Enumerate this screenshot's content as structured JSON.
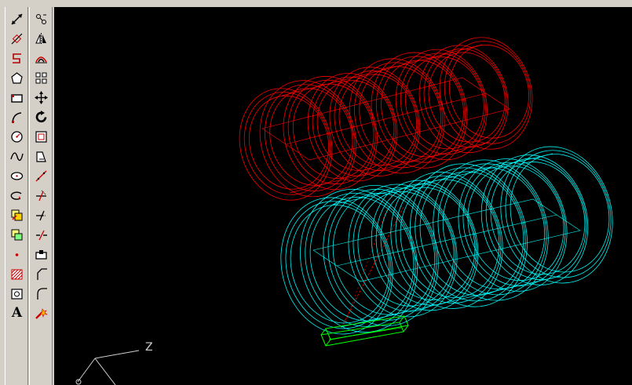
{
  "toolbars": {
    "draw": {
      "buttons": [
        {
          "icon": "line-icon"
        },
        {
          "icon": "construction-line-icon"
        },
        {
          "icon": "polyline-icon"
        },
        {
          "icon": "polygon-icon"
        },
        {
          "icon": "rectangle-icon"
        },
        {
          "icon": "arc-icon"
        },
        {
          "icon": "circle-icon"
        },
        {
          "icon": "spline-icon"
        },
        {
          "icon": "ellipse-icon"
        },
        {
          "icon": "ellipse-arc-icon"
        },
        {
          "icon": "insert-block-icon"
        },
        {
          "icon": "make-block-icon"
        },
        {
          "icon": "point-icon"
        },
        {
          "icon": "hatch-icon"
        },
        {
          "icon": "region-icon"
        },
        {
          "icon": "multiline-text-icon",
          "label": "A"
        }
      ]
    },
    "modify": {
      "buttons": [
        {
          "icon": "erase-icon"
        },
        {
          "icon": "mirror-icon"
        },
        {
          "icon": "offset-icon"
        },
        {
          "icon": "array-icon"
        },
        {
          "icon": "move-icon"
        },
        {
          "icon": "rotate-icon"
        },
        {
          "icon": "scale-icon"
        },
        {
          "icon": "stretch-icon"
        },
        {
          "icon": "lengthen-icon"
        },
        {
          "icon": "trim-icon"
        },
        {
          "icon": "extend-icon"
        },
        {
          "icon": "break-icon"
        },
        {
          "icon": "break-at-point-icon"
        },
        {
          "icon": "chamfer-icon"
        },
        {
          "icon": "fillet-icon"
        },
        {
          "icon": "explode-icon"
        }
      ]
    }
  },
  "viewport": {
    "ucs_axis_label": "Z",
    "colors": {
      "background": "#000000",
      "red_solid": "#ff0000",
      "cyan_solid": "#00ffff",
      "green_solid": "#00ff00",
      "ucs_icon": "#d0d0d0"
    }
  }
}
